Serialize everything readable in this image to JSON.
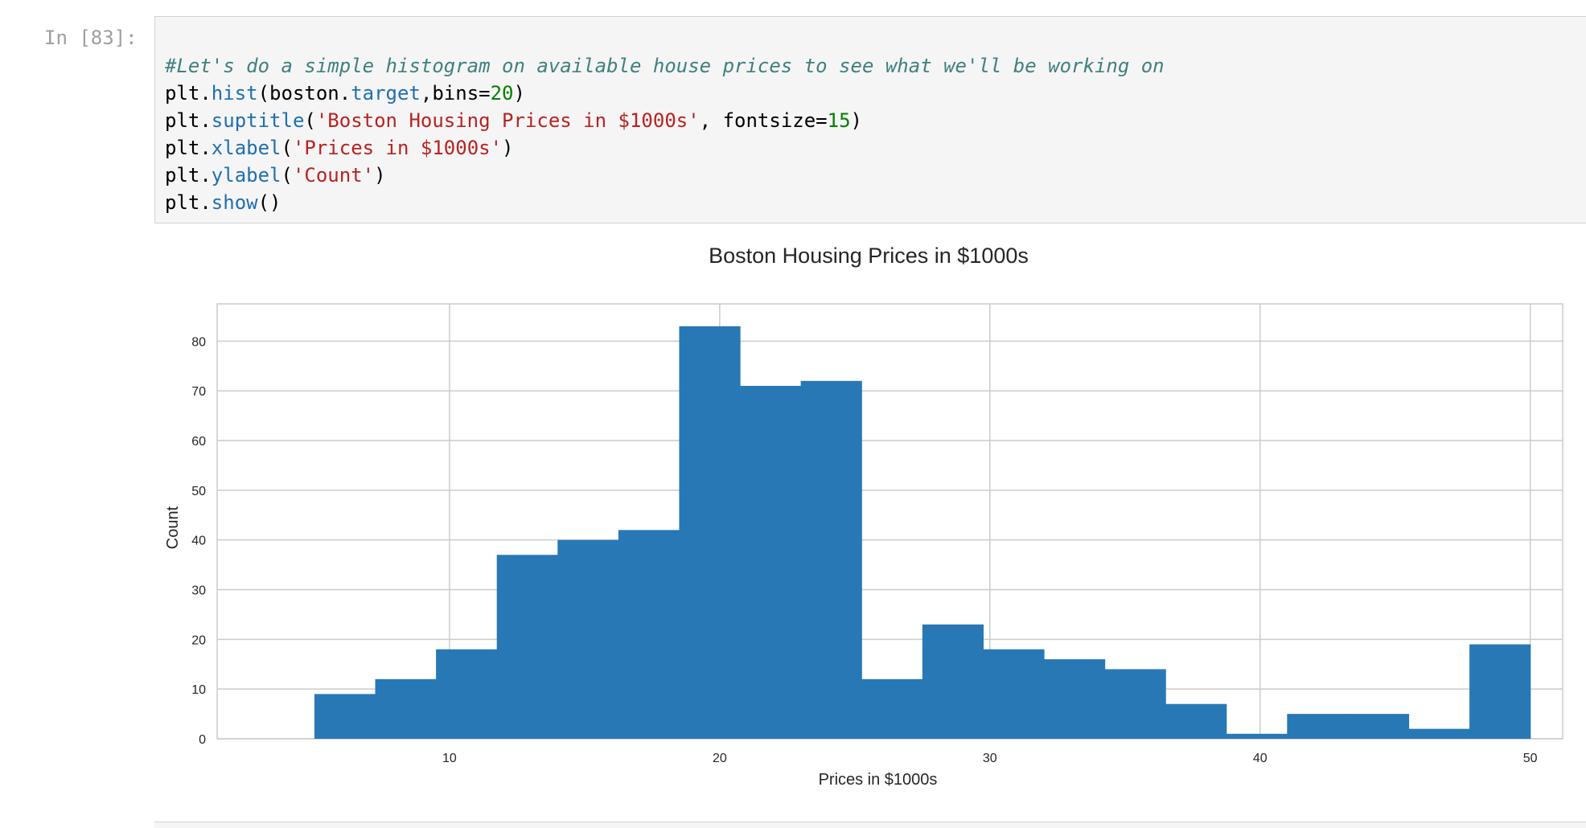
{
  "cell": {
    "prompt": "In [83]:",
    "code_lines": [
      [
        {
          "t": "comment",
          "v": "#Let's do a simple histogram on available house prices to see what we'll be working on"
        }
      ],
      [
        {
          "t": "plain",
          "v": "plt."
        },
        {
          "t": "attr",
          "v": "hist"
        },
        {
          "t": "plain",
          "v": "(boston."
        },
        {
          "t": "attr",
          "v": "target"
        },
        {
          "t": "plain",
          "v": ",bins="
        },
        {
          "t": "num",
          "v": "20"
        },
        {
          "t": "plain",
          "v": ")"
        }
      ],
      [
        {
          "t": "plain",
          "v": "plt."
        },
        {
          "t": "attr",
          "v": "suptitle"
        },
        {
          "t": "plain",
          "v": "("
        },
        {
          "t": "str",
          "v": "'Boston Housing Prices in $1000s'"
        },
        {
          "t": "plain",
          "v": ", fontsize="
        },
        {
          "t": "num",
          "v": "15"
        },
        {
          "t": "plain",
          "v": ")"
        }
      ],
      [
        {
          "t": "plain",
          "v": "plt."
        },
        {
          "t": "attr",
          "v": "xlabel"
        },
        {
          "t": "plain",
          "v": "("
        },
        {
          "t": "str",
          "v": "'Prices in $1000s'"
        },
        {
          "t": "plain",
          "v": ")"
        }
      ],
      [
        {
          "t": "plain",
          "v": "plt."
        },
        {
          "t": "attr",
          "v": "ylabel"
        },
        {
          "t": "plain",
          "v": "("
        },
        {
          "t": "str",
          "v": "'Count'"
        },
        {
          "t": "plain",
          "v": ")"
        }
      ],
      [
        {
          "t": "plain",
          "v": "plt."
        },
        {
          "t": "attr",
          "v": "show"
        },
        {
          "t": "plain",
          "v": "()"
        }
      ]
    ]
  },
  "chart_data": {
    "type": "bar",
    "title": "Boston Housing Prices in $1000s",
    "xlabel": "Prices in $1000s",
    "ylabel": "Count",
    "bin_edges": [
      5.0,
      7.25,
      9.5,
      11.75,
      14.0,
      16.25,
      18.5,
      20.75,
      23.0,
      25.25,
      27.5,
      29.75,
      32.0,
      34.25,
      36.5,
      38.75,
      41.0,
      43.25,
      45.5,
      47.75,
      50.0
    ],
    "values": [
      9,
      12,
      18,
      37,
      40,
      42,
      83,
      71,
      72,
      12,
      23,
      18,
      16,
      14,
      7,
      1,
      5,
      5,
      2,
      19
    ],
    "xlim": [
      1.4,
      51.2
    ],
    "ylim": [
      0,
      87.5
    ],
    "x_ticks": [
      10,
      20,
      30,
      40,
      50
    ],
    "y_ticks": [
      0,
      10,
      20,
      30,
      40,
      50,
      60,
      70,
      80
    ],
    "grid": true,
    "bar_color": "#2878b5"
  }
}
